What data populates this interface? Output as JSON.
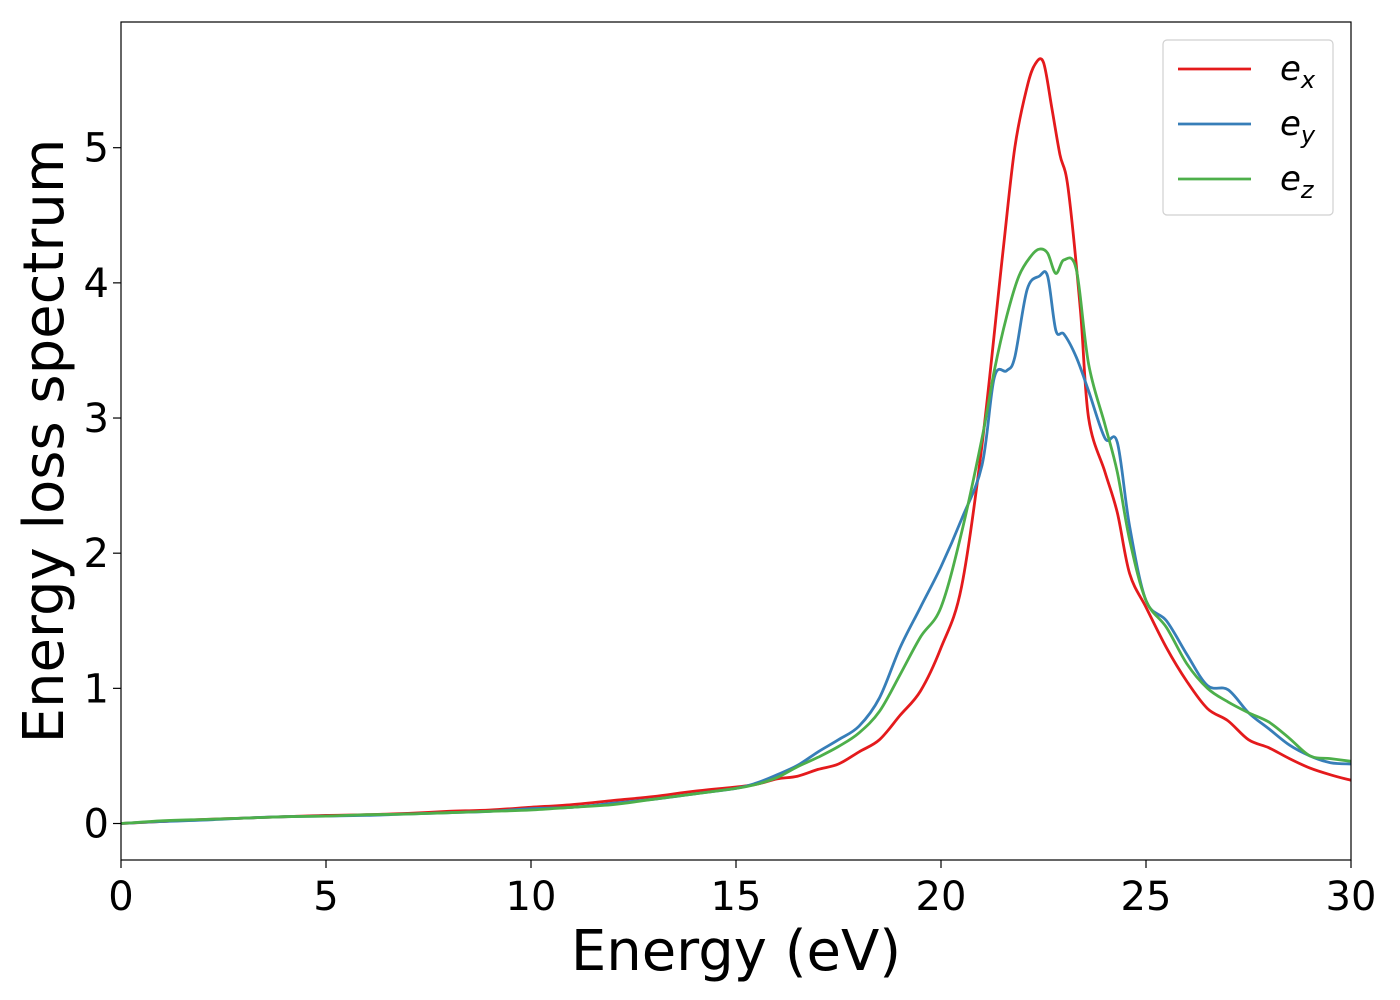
{
  "chart_data": {
    "type": "line",
    "title": "",
    "xlabel": "Energy (eV)",
    "ylabel": "Energy loss spectrum",
    "xlim": [
      0,
      30
    ],
    "ylim": [
      -0.27,
      5.93
    ],
    "xticks": [
      0,
      5,
      10,
      15,
      20,
      25,
      30
    ],
    "yticks": [
      0,
      1,
      2,
      3,
      4,
      5
    ],
    "grid": false,
    "legend": {
      "placement": "top-right"
    },
    "series": [
      {
        "name": "e",
        "subscript": "x",
        "color": "#e41a1c",
        "points": [
          [
            0,
            0
          ],
          [
            1,
            0.015
          ],
          [
            2,
            0.03
          ],
          [
            3,
            0.04
          ],
          [
            4,
            0.05
          ],
          [
            5,
            0.06
          ],
          [
            6,
            0.065
          ],
          [
            7,
            0.075
          ],
          [
            8,
            0.09
          ],
          [
            9,
            0.1
          ],
          [
            10,
            0.12
          ],
          [
            11,
            0.14
          ],
          [
            12,
            0.17
          ],
          [
            13,
            0.2
          ],
          [
            14,
            0.24
          ],
          [
            15,
            0.27
          ],
          [
            15.5,
            0.29
          ],
          [
            16,
            0.33
          ],
          [
            16.5,
            0.35
          ],
          [
            17,
            0.4
          ],
          [
            17.5,
            0.44
          ],
          [
            18,
            0.53
          ],
          [
            18.5,
            0.62
          ],
          [
            19,
            0.8
          ],
          [
            19.5,
            0.98
          ],
          [
            20,
            1.3
          ],
          [
            20.5,
            1.75
          ],
          [
            21,
            2.8
          ],
          [
            21.5,
            4.2
          ],
          [
            21.8,
            5.0
          ],
          [
            22.1,
            5.45
          ],
          [
            22.3,
            5.62
          ],
          [
            22.5,
            5.63
          ],
          [
            22.7,
            5.3
          ],
          [
            22.9,
            4.95
          ],
          [
            23.1,
            4.7
          ],
          [
            23.4,
            3.8
          ],
          [
            23.6,
            3.0
          ],
          [
            24,
            2.6
          ],
          [
            24.3,
            2.3
          ],
          [
            24.6,
            1.85
          ],
          [
            25,
            1.6
          ],
          [
            25.5,
            1.3
          ],
          [
            26,
            1.05
          ],
          [
            26.5,
            0.85
          ],
          [
            27,
            0.76
          ],
          [
            27.5,
            0.62
          ],
          [
            28,
            0.56
          ],
          [
            28.5,
            0.48
          ],
          [
            29,
            0.41
          ],
          [
            29.5,
            0.36
          ],
          [
            30,
            0.32
          ]
        ]
      },
      {
        "name": "e",
        "subscript": "y",
        "color": "#377eb8",
        "points": [
          [
            0,
            0
          ],
          [
            1,
            0.015
          ],
          [
            2,
            0.025
          ],
          [
            3,
            0.04
          ],
          [
            4,
            0.05
          ],
          [
            5,
            0.055
          ],
          [
            6,
            0.06
          ],
          [
            7,
            0.07
          ],
          [
            8,
            0.08
          ],
          [
            9,
            0.09
          ],
          [
            10,
            0.11
          ],
          [
            11,
            0.12
          ],
          [
            12,
            0.15
          ],
          [
            13,
            0.18
          ],
          [
            14,
            0.22
          ],
          [
            15,
            0.26
          ],
          [
            15.5,
            0.3
          ],
          [
            16,
            0.36
          ],
          [
            16.5,
            0.43
          ],
          [
            17,
            0.53
          ],
          [
            17.5,
            0.62
          ],
          [
            18,
            0.72
          ],
          [
            18.5,
            0.93
          ],
          [
            19,
            1.3
          ],
          [
            19.5,
            1.6
          ],
          [
            20,
            1.9
          ],
          [
            20.5,
            2.25
          ],
          [
            21,
            2.65
          ],
          [
            21.3,
            3.3
          ],
          [
            21.6,
            3.35
          ],
          [
            21.8,
            3.45
          ],
          [
            22.1,
            3.95
          ],
          [
            22.4,
            4.05
          ],
          [
            22.6,
            4.05
          ],
          [
            22.8,
            3.65
          ],
          [
            23,
            3.62
          ],
          [
            23.3,
            3.45
          ],
          [
            23.6,
            3.2
          ],
          [
            24,
            2.85
          ],
          [
            24.3,
            2.82
          ],
          [
            24.6,
            2.2
          ],
          [
            25,
            1.65
          ],
          [
            25.5,
            1.5
          ],
          [
            26,
            1.25
          ],
          [
            26.5,
            1.02
          ],
          [
            27,
            0.99
          ],
          [
            27.5,
            0.82
          ],
          [
            28,
            0.7
          ],
          [
            28.5,
            0.58
          ],
          [
            29,
            0.5
          ],
          [
            29.5,
            0.45
          ],
          [
            30,
            0.44
          ]
        ]
      },
      {
        "name": "e",
        "subscript": "z",
        "color": "#4daf4a",
        "points": [
          [
            0,
            0
          ],
          [
            1,
            0.02
          ],
          [
            2,
            0.03
          ],
          [
            3,
            0.04
          ],
          [
            4,
            0.05
          ],
          [
            5,
            0.055
          ],
          [
            6,
            0.065
          ],
          [
            7,
            0.07
          ],
          [
            8,
            0.08
          ],
          [
            9,
            0.09
          ],
          [
            10,
            0.1
          ],
          [
            11,
            0.12
          ],
          [
            12,
            0.14
          ],
          [
            13,
            0.18
          ],
          [
            14,
            0.22
          ],
          [
            15,
            0.26
          ],
          [
            15.5,
            0.29
          ],
          [
            16,
            0.34
          ],
          [
            16.5,
            0.42
          ],
          [
            17,
            0.49
          ],
          [
            17.5,
            0.57
          ],
          [
            18,
            0.67
          ],
          [
            18.5,
            0.83
          ],
          [
            19,
            1.1
          ],
          [
            19.5,
            1.38
          ],
          [
            20,
            1.6
          ],
          [
            20.5,
            2.15
          ],
          [
            21,
            2.85
          ],
          [
            21.3,
            3.35
          ],
          [
            21.6,
            3.75
          ],
          [
            21.9,
            4.05
          ],
          [
            22.2,
            4.2
          ],
          [
            22.4,
            4.25
          ],
          [
            22.6,
            4.22
          ],
          [
            22.8,
            4.07
          ],
          [
            23,
            4.17
          ],
          [
            23.3,
            4.1
          ],
          [
            23.6,
            3.4
          ],
          [
            24,
            2.95
          ],
          [
            24.3,
            2.6
          ],
          [
            24.6,
            2.1
          ],
          [
            25,
            1.65
          ],
          [
            25.5,
            1.45
          ],
          [
            26,
            1.18
          ],
          [
            26.5,
            1.0
          ],
          [
            27,
            0.9
          ],
          [
            27.5,
            0.82
          ],
          [
            28,
            0.75
          ],
          [
            28.5,
            0.63
          ],
          [
            29,
            0.5
          ],
          [
            29.5,
            0.48
          ],
          [
            30,
            0.46
          ]
        ]
      }
    ]
  }
}
